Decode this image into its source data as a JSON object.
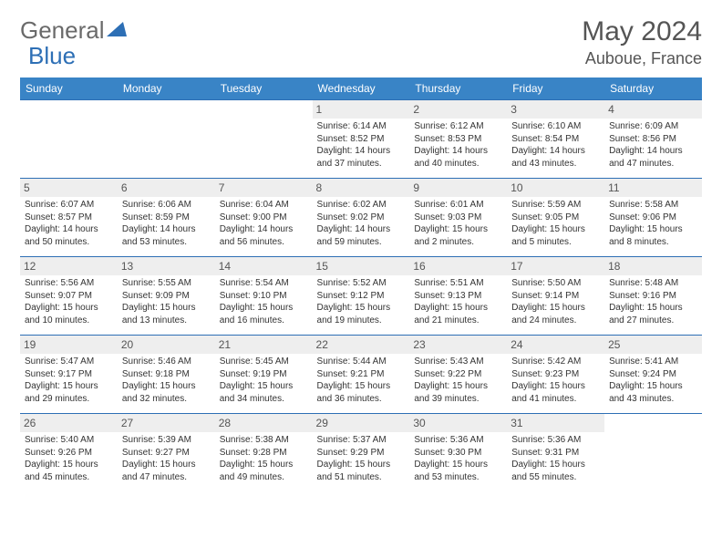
{
  "logo": {
    "part1": "General",
    "part2": "Blue"
  },
  "title": "May 2024",
  "location": "Auboue, France",
  "colors": {
    "header_bg": "#3984c6",
    "header_text": "#ffffff",
    "border": "#2d6fb5",
    "daynum_bg": "#eeeeee",
    "text": "#333333",
    "logo_gray": "#6a6a6a",
    "logo_blue": "#2d6fb5"
  },
  "day_headers": [
    "Sunday",
    "Monday",
    "Tuesday",
    "Wednesday",
    "Thursday",
    "Friday",
    "Saturday"
  ],
  "weeks": [
    [
      null,
      null,
      null,
      {
        "n": "1",
        "sr": "6:14 AM",
        "ss": "8:52 PM",
        "dl": "14 hours and 37 minutes."
      },
      {
        "n": "2",
        "sr": "6:12 AM",
        "ss": "8:53 PM",
        "dl": "14 hours and 40 minutes."
      },
      {
        "n": "3",
        "sr": "6:10 AM",
        "ss": "8:54 PM",
        "dl": "14 hours and 43 minutes."
      },
      {
        "n": "4",
        "sr": "6:09 AM",
        "ss": "8:56 PM",
        "dl": "14 hours and 47 minutes."
      }
    ],
    [
      {
        "n": "5",
        "sr": "6:07 AM",
        "ss": "8:57 PM",
        "dl": "14 hours and 50 minutes."
      },
      {
        "n": "6",
        "sr": "6:06 AM",
        "ss": "8:59 PM",
        "dl": "14 hours and 53 minutes."
      },
      {
        "n": "7",
        "sr": "6:04 AM",
        "ss": "9:00 PM",
        "dl": "14 hours and 56 minutes."
      },
      {
        "n": "8",
        "sr": "6:02 AM",
        "ss": "9:02 PM",
        "dl": "14 hours and 59 minutes."
      },
      {
        "n": "9",
        "sr": "6:01 AM",
        "ss": "9:03 PM",
        "dl": "15 hours and 2 minutes."
      },
      {
        "n": "10",
        "sr": "5:59 AM",
        "ss": "9:05 PM",
        "dl": "15 hours and 5 minutes."
      },
      {
        "n": "11",
        "sr": "5:58 AM",
        "ss": "9:06 PM",
        "dl": "15 hours and 8 minutes."
      }
    ],
    [
      {
        "n": "12",
        "sr": "5:56 AM",
        "ss": "9:07 PM",
        "dl": "15 hours and 10 minutes."
      },
      {
        "n": "13",
        "sr": "5:55 AM",
        "ss": "9:09 PM",
        "dl": "15 hours and 13 minutes."
      },
      {
        "n": "14",
        "sr": "5:54 AM",
        "ss": "9:10 PM",
        "dl": "15 hours and 16 minutes."
      },
      {
        "n": "15",
        "sr": "5:52 AM",
        "ss": "9:12 PM",
        "dl": "15 hours and 19 minutes."
      },
      {
        "n": "16",
        "sr": "5:51 AM",
        "ss": "9:13 PM",
        "dl": "15 hours and 21 minutes."
      },
      {
        "n": "17",
        "sr": "5:50 AM",
        "ss": "9:14 PM",
        "dl": "15 hours and 24 minutes."
      },
      {
        "n": "18",
        "sr": "5:48 AM",
        "ss": "9:16 PM",
        "dl": "15 hours and 27 minutes."
      }
    ],
    [
      {
        "n": "19",
        "sr": "5:47 AM",
        "ss": "9:17 PM",
        "dl": "15 hours and 29 minutes."
      },
      {
        "n": "20",
        "sr": "5:46 AM",
        "ss": "9:18 PM",
        "dl": "15 hours and 32 minutes."
      },
      {
        "n": "21",
        "sr": "5:45 AM",
        "ss": "9:19 PM",
        "dl": "15 hours and 34 minutes."
      },
      {
        "n": "22",
        "sr": "5:44 AM",
        "ss": "9:21 PM",
        "dl": "15 hours and 36 minutes."
      },
      {
        "n": "23",
        "sr": "5:43 AM",
        "ss": "9:22 PM",
        "dl": "15 hours and 39 minutes."
      },
      {
        "n": "24",
        "sr": "5:42 AM",
        "ss": "9:23 PM",
        "dl": "15 hours and 41 minutes."
      },
      {
        "n": "25",
        "sr": "5:41 AM",
        "ss": "9:24 PM",
        "dl": "15 hours and 43 minutes."
      }
    ],
    [
      {
        "n": "26",
        "sr": "5:40 AM",
        "ss": "9:26 PM",
        "dl": "15 hours and 45 minutes."
      },
      {
        "n": "27",
        "sr": "5:39 AM",
        "ss": "9:27 PM",
        "dl": "15 hours and 47 minutes."
      },
      {
        "n": "28",
        "sr": "5:38 AM",
        "ss": "9:28 PM",
        "dl": "15 hours and 49 minutes."
      },
      {
        "n": "29",
        "sr": "5:37 AM",
        "ss": "9:29 PM",
        "dl": "15 hours and 51 minutes."
      },
      {
        "n": "30",
        "sr": "5:36 AM",
        "ss": "9:30 PM",
        "dl": "15 hours and 53 minutes."
      },
      {
        "n": "31",
        "sr": "5:36 AM",
        "ss": "9:31 PM",
        "dl": "15 hours and 55 minutes."
      },
      null
    ]
  ],
  "labels": {
    "sunrise": "Sunrise:",
    "sunset": "Sunset:",
    "daylight": "Daylight:"
  }
}
